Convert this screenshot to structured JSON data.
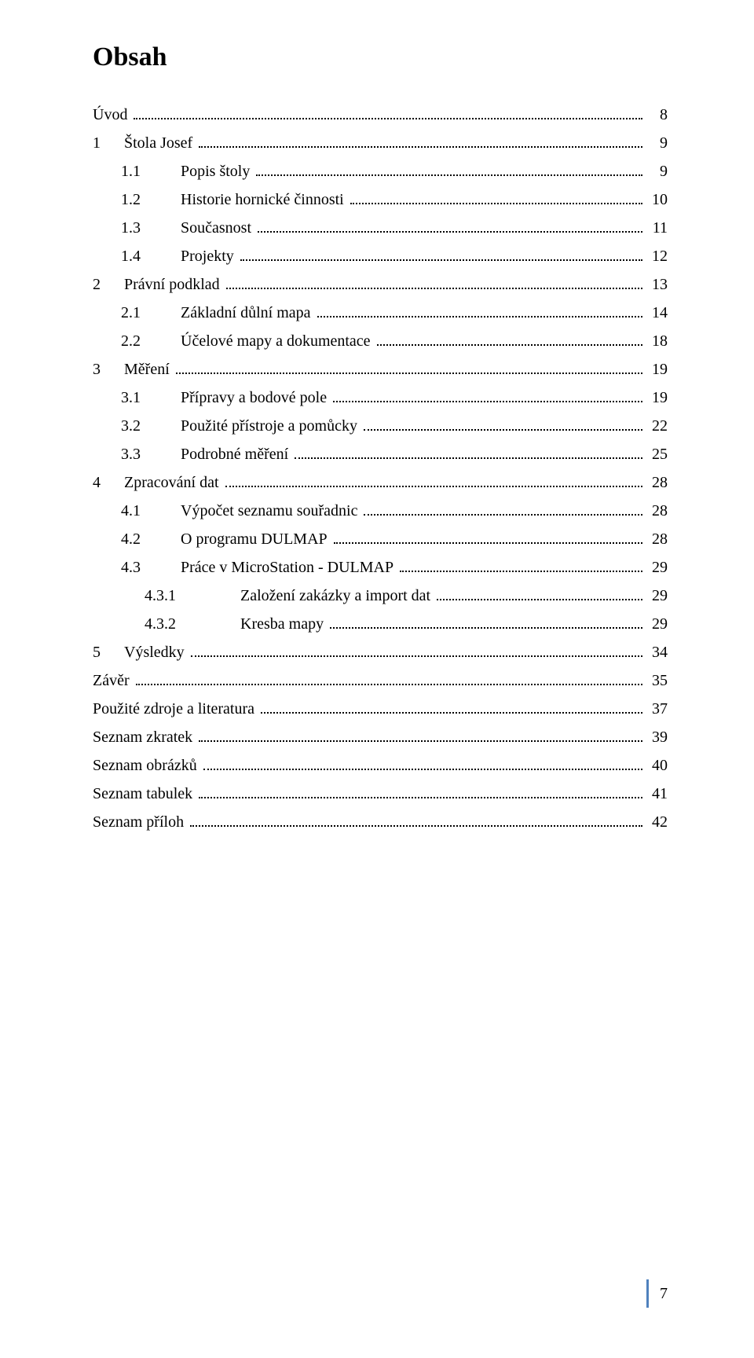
{
  "title": "Obsah",
  "colors": {
    "text": "#000000",
    "background": "#ffffff",
    "accent_bar": "#4f81bd",
    "dot_leader": "#000000"
  },
  "typography": {
    "title_fontsize_pt": 26,
    "title_fontweight": "bold",
    "entry_fontsize_pt": 15,
    "font_family": "Times New Roman"
  },
  "entries": [
    {
      "level": 0,
      "num": "",
      "label": "Úvod",
      "page": "8"
    },
    {
      "level": 1,
      "num": "1",
      "label": "Štola Josef",
      "page": "9"
    },
    {
      "level": 2,
      "num": "1.1",
      "label": "Popis štoly",
      "page": "9"
    },
    {
      "level": 2,
      "num": "1.2",
      "label": "Historie hornické činnosti",
      "page": "10"
    },
    {
      "level": 2,
      "num": "1.3",
      "label": "Současnost",
      "page": "11"
    },
    {
      "level": 2,
      "num": "1.4",
      "label": "Projekty",
      "page": "12"
    },
    {
      "level": 1,
      "num": "2",
      "label": "Právní podklad",
      "page": "13"
    },
    {
      "level": 2,
      "num": "2.1",
      "label": "Základní důlní mapa",
      "page": "14"
    },
    {
      "level": 2,
      "num": "2.2",
      "label": "Účelové mapy a dokumentace",
      "page": "18"
    },
    {
      "level": 1,
      "num": "3",
      "label": "Měření",
      "page": "19"
    },
    {
      "level": 2,
      "num": "3.1",
      "label": "Přípravy a bodové pole",
      "page": "19"
    },
    {
      "level": 2,
      "num": "3.2",
      "label": "Použité přístroje a pomůcky",
      "page": "22"
    },
    {
      "level": 2,
      "num": "3.3",
      "label": "Podrobné měření",
      "page": "25"
    },
    {
      "level": 1,
      "num": "4",
      "label": "Zpracování dat",
      "page": "28"
    },
    {
      "level": 2,
      "num": "4.1",
      "label": "Výpočet seznamu souřadnic",
      "page": "28"
    },
    {
      "level": 2,
      "num": "4.2",
      "label": "O programu DULMAP",
      "page": "28"
    },
    {
      "level": 2,
      "num": "4.3",
      "label": "Práce v MicroStation - DULMAP",
      "page": "29"
    },
    {
      "level": 3,
      "num": "4.3.1",
      "label": "Založení zakázky a import dat",
      "page": "29"
    },
    {
      "level": 3,
      "num": "4.3.2",
      "label": "Kresba mapy",
      "page": "29"
    },
    {
      "level": 1,
      "num": "5",
      "label": "Výsledky",
      "page": "34"
    },
    {
      "level": 0,
      "num": "",
      "label": "Závěr",
      "page": "35"
    },
    {
      "level": 0,
      "num": "",
      "label": "Použité zdroje a literatura",
      "page": "37"
    },
    {
      "level": 0,
      "num": "",
      "label": "Seznam zkratek",
      "page": "39"
    },
    {
      "level": 0,
      "num": "",
      "label": "Seznam obrázků",
      "page": "40"
    },
    {
      "level": 0,
      "num": "",
      "label": "Seznam tabulek",
      "page": "41"
    },
    {
      "level": 0,
      "num": "",
      "label": "Seznam příloh",
      "page": "42"
    }
  ],
  "page_number": "7"
}
